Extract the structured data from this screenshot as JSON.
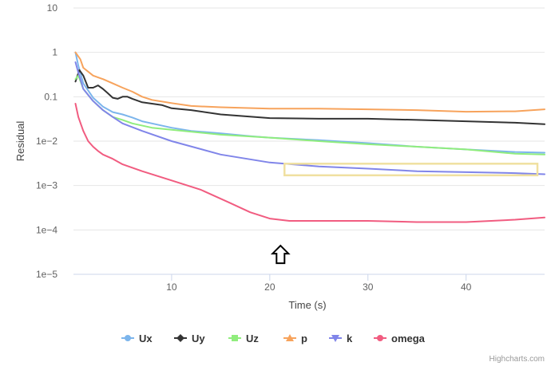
{
  "chart_data": {
    "type": "line",
    "xlabel": "Time (s)",
    "ylabel": "Residual",
    "y_scale": "log",
    "xlim": [
      0,
      48
    ],
    "ylim": [
      1e-05,
      10
    ],
    "x_ticks": [
      10,
      20,
      30,
      40
    ],
    "x_tick_labels": [
      "10",
      "20",
      "30",
      "40"
    ],
    "y_ticks": [
      1e-05,
      0.0001,
      0.001,
      0.01,
      0.1,
      1,
      10
    ],
    "y_tick_labels": [
      "1e−5",
      "1e−4",
      "1e−3",
      "1e−2",
      "0.1",
      "1",
      "10"
    ],
    "grid": true,
    "legend_position": "bottom",
    "credits": "Highcharts.com",
    "series": [
      {
        "name": "Ux",
        "color": "#7cb5ec",
        "marker": "circle",
        "points": [
          [
            0.2,
            1.0
          ],
          [
            0.5,
            0.5
          ],
          [
            1,
            0.2
          ],
          [
            2,
            0.095
          ],
          [
            3,
            0.06
          ],
          [
            4,
            0.045
          ],
          [
            5,
            0.04
          ],
          [
            6,
            0.034
          ],
          [
            7,
            0.028
          ],
          [
            8,
            0.025
          ],
          [
            10,
            0.02
          ],
          [
            12,
            0.017
          ],
          [
            15,
            0.015
          ],
          [
            18,
            0.013
          ],
          [
            20,
            0.012
          ],
          [
            25,
            0.0105
          ],
          [
            30,
            0.009
          ],
          [
            35,
            0.0075
          ],
          [
            40,
            0.0065
          ],
          [
            45,
            0.0057
          ],
          [
            48,
            0.0055
          ]
        ]
      },
      {
        "name": "Uy",
        "color": "#333333",
        "marker": "diamond",
        "points": [
          [
            0.2,
            0.22
          ],
          [
            0.6,
            0.4
          ],
          [
            1,
            0.3
          ],
          [
            1.5,
            0.16
          ],
          [
            2,
            0.16
          ],
          [
            2.5,
            0.18
          ],
          [
            3,
            0.15
          ],
          [
            3.5,
            0.12
          ],
          [
            4,
            0.095
          ],
          [
            4.5,
            0.09
          ],
          [
            5,
            0.1
          ],
          [
            5.5,
            0.1
          ],
          [
            6,
            0.09
          ],
          [
            7,
            0.075
          ],
          [
            8,
            0.07
          ],
          [
            9,
            0.065
          ],
          [
            10,
            0.055
          ],
          [
            12,
            0.05
          ],
          [
            15,
            0.04
          ],
          [
            20,
            0.033
          ],
          [
            25,
            0.032
          ],
          [
            30,
            0.032
          ],
          [
            35,
            0.03
          ],
          [
            40,
            0.028
          ],
          [
            45,
            0.026
          ],
          [
            48,
            0.024
          ]
        ]
      },
      {
        "name": "Uz",
        "color": "#90ed7d",
        "marker": "square",
        "points": [
          [
            0.2,
            0.25
          ],
          [
            0.5,
            0.3
          ],
          [
            1,
            0.15
          ],
          [
            2,
            0.08
          ],
          [
            3,
            0.05
          ],
          [
            4,
            0.035
          ],
          [
            5,
            0.03
          ],
          [
            6,
            0.025
          ],
          [
            8,
            0.02
          ],
          [
            10,
            0.018
          ],
          [
            15,
            0.014
          ],
          [
            20,
            0.012
          ],
          [
            25,
            0.01
          ],
          [
            30,
            0.0085
          ],
          [
            35,
            0.0075
          ],
          [
            40,
            0.0065
          ],
          [
            45,
            0.0052
          ],
          [
            48,
            0.005
          ]
        ]
      },
      {
        "name": "p",
        "color": "#f7a35c",
        "marker": "triangle",
        "points": [
          [
            0.2,
            1.0
          ],
          [
            0.7,
            0.7
          ],
          [
            1,
            0.45
          ],
          [
            2,
            0.3
          ],
          [
            3,
            0.25
          ],
          [
            4,
            0.2
          ],
          [
            5,
            0.16
          ],
          [
            6,
            0.13
          ],
          [
            7,
            0.1
          ],
          [
            8,
            0.085
          ],
          [
            10,
            0.072
          ],
          [
            12,
            0.062
          ],
          [
            15,
            0.058
          ],
          [
            20,
            0.054
          ],
          [
            25,
            0.054
          ],
          [
            30,
            0.052
          ],
          [
            35,
            0.05
          ],
          [
            40,
            0.046
          ],
          [
            45,
            0.047
          ],
          [
            48,
            0.052
          ]
        ]
      },
      {
        "name": "k",
        "color": "#8085e9",
        "marker": "triangle-down",
        "points": [
          [
            0.2,
            0.6
          ],
          [
            0.5,
            0.35
          ],
          [
            1,
            0.15
          ],
          [
            2,
            0.08
          ],
          [
            3,
            0.05
          ],
          [
            4,
            0.035
          ],
          [
            5,
            0.025
          ],
          [
            7,
            0.017
          ],
          [
            10,
            0.01
          ],
          [
            15,
            0.005
          ],
          [
            20,
            0.0033
          ],
          [
            25,
            0.0027
          ],
          [
            30,
            0.0024
          ],
          [
            35,
            0.0021
          ],
          [
            40,
            0.002
          ],
          [
            45,
            0.0019
          ],
          [
            48,
            0.0018
          ]
        ]
      },
      {
        "name": "omega",
        "color": "#f15c80",
        "marker": "circle",
        "points": [
          [
            0.2,
            0.07
          ],
          [
            0.5,
            0.035
          ],
          [
            1,
            0.017
          ],
          [
            1.5,
            0.01
          ],
          [
            2,
            0.0075
          ],
          [
            2.5,
            0.006
          ],
          [
            3,
            0.005
          ],
          [
            4,
            0.004
          ],
          [
            5,
            0.003
          ],
          [
            7,
            0.0021
          ],
          [
            10,
            0.0013
          ],
          [
            13,
            0.0008
          ],
          [
            16,
            0.0004
          ],
          [
            18,
            0.00025
          ],
          [
            20,
            0.00018
          ],
          [
            22,
            0.00016
          ],
          [
            25,
            0.00016
          ],
          [
            30,
            0.00016
          ],
          [
            35,
            0.00015
          ],
          [
            40,
            0.00015
          ],
          [
            45,
            0.00017
          ],
          [
            48,
            0.00019
          ]
        ]
      }
    ],
    "annotations": [
      {
        "type": "highlight-box",
        "color": "#f0e0a0",
        "x_range": [
          21.5,
          48
        ],
        "y_range": [
          0.0017,
          0.0031
        ]
      },
      {
        "type": "up-arrow",
        "color": "#000000",
        "x": 21.5,
        "y": 2.8e-05
      }
    ]
  }
}
